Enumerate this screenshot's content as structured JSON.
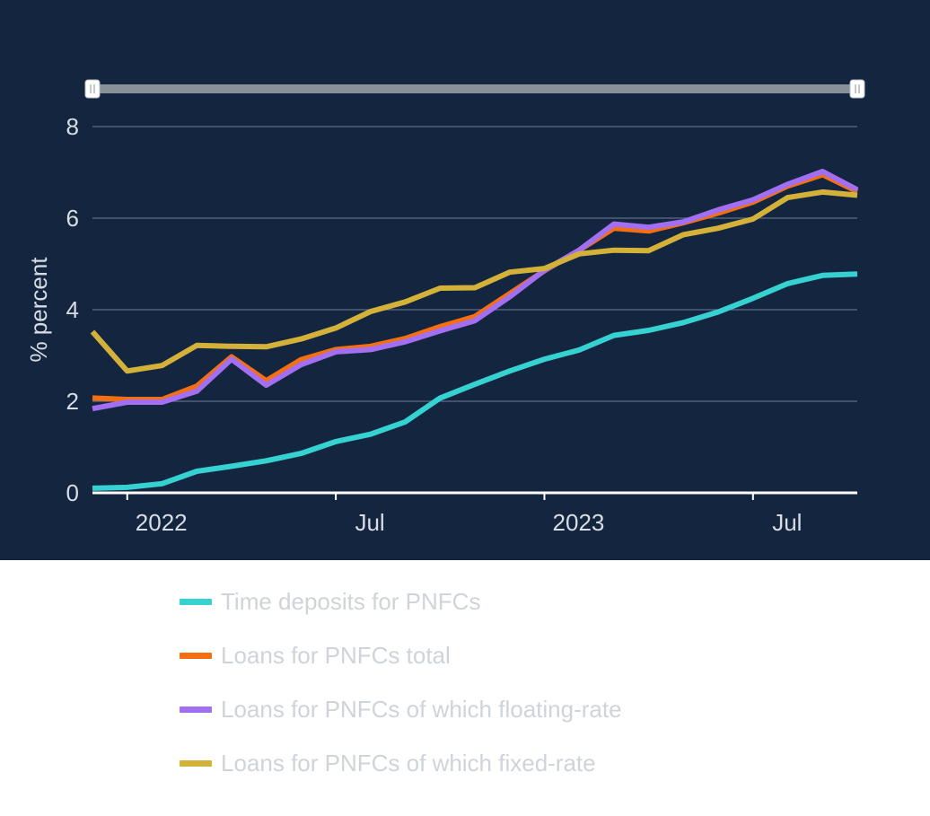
{
  "chart_data": {
    "type": "line",
    "title": "",
    "xlabel": "",
    "ylabel": "% percent",
    "ylim": [
      0,
      8
    ],
    "yticks": [
      0,
      2,
      4,
      6,
      8
    ],
    "xticks": [
      {
        "date": "2022-01",
        "label": "2022"
      },
      {
        "date": "2022-07",
        "label": "Jul"
      },
      {
        "date": "2023-01",
        "label": "2023"
      },
      {
        "date": "2023-07",
        "label": "Jul"
      }
    ],
    "x": [
      "2021-12",
      "2022-01",
      "2022-02",
      "2022-03",
      "2022-04",
      "2022-05",
      "2022-06",
      "2022-07",
      "2022-08",
      "2022-09",
      "2022-10",
      "2022-11",
      "2022-12",
      "2023-01",
      "2023-02",
      "2023-03",
      "2023-04",
      "2023-05",
      "2023-06",
      "2023-07",
      "2023-08",
      "2023-09",
      "2023-10"
    ],
    "grid": true,
    "legend_position": "bottom",
    "range_selector": true,
    "series": [
      {
        "name": "Time deposits for PNFCs",
        "color": "#36d1d1",
        "values": [
          0.1,
          0.12,
          0.2,
          0.47,
          0.58,
          0.7,
          0.86,
          1.12,
          1.28,
          1.55,
          2.07,
          2.37,
          2.66,
          2.92,
          3.12,
          3.44,
          3.55,
          3.72,
          3.95,
          4.25,
          4.57,
          4.75,
          4.78
        ]
      },
      {
        "name": "Loans for PNFCs total",
        "color": "#f36f12",
        "values": [
          2.07,
          2.04,
          2.04,
          2.33,
          2.97,
          2.45,
          2.91,
          3.13,
          3.2,
          3.37,
          3.63,
          3.85,
          4.35,
          4.85,
          5.3,
          5.78,
          5.72,
          5.9,
          6.11,
          6.35,
          6.7,
          6.95,
          6.58
        ]
      },
      {
        "name": "Loans for PNFCs of which floating-rate",
        "color": "#a36ff2",
        "values": [
          1.84,
          1.98,
          1.98,
          2.22,
          2.92,
          2.35,
          2.8,
          3.08,
          3.13,
          3.3,
          3.54,
          3.76,
          4.28,
          4.86,
          5.3,
          5.87,
          5.8,
          5.92,
          6.18,
          6.4,
          6.74,
          7.02,
          6.62
        ]
      },
      {
        "name": "Loans for PNFCs of which fixed-rate",
        "color": "#d4b23a",
        "values": [
          3.52,
          2.66,
          2.78,
          3.22,
          3.2,
          3.19,
          3.36,
          3.6,
          3.96,
          4.17,
          4.47,
          4.48,
          4.82,
          4.9,
          5.22,
          5.3,
          5.29,
          5.64,
          5.78,
          5.98,
          6.45,
          6.57,
          6.5
        ]
      }
    ]
  }
}
